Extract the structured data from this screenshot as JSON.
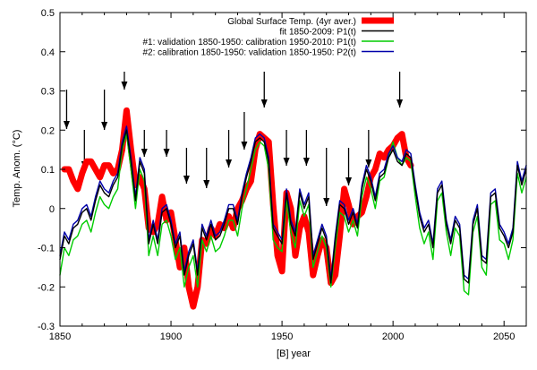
{
  "chart_data": {
    "type": "line",
    "title": "",
    "xlabel": "[B]   year",
    "ylabel": "Temp. Anom. (°C)",
    "xlim": [
      1850,
      2060
    ],
    "ylim": [
      -0.3,
      0.5
    ],
    "xticks": [
      1850,
      1900,
      1950,
      2000,
      2050
    ],
    "yticks": [
      -0.3,
      -0.2,
      -0.1,
      0,
      0.1,
      0.2,
      0.3,
      0.4,
      0.5
    ],
    "grid": false,
    "legend_position": "top-right",
    "series": [
      {
        "name": "Global Surface Temp. (4yr aver.)",
        "color": "#ff0000",
        "x": [
          1852,
          1854,
          1856,
          1858,
          1860,
          1862,
          1864,
          1866,
          1868,
          1870,
          1872,
          1874,
          1876,
          1878,
          1880,
          1882,
          1884,
          1886,
          1888,
          1890,
          1892,
          1894,
          1896,
          1898,
          1900,
          1902,
          1904,
          1906,
          1908,
          1910,
          1912,
          1914,
          1916,
          1918,
          1920,
          1922,
          1924,
          1926,
          1928,
          1930,
          1932,
          1934,
          1936,
          1938,
          1940,
          1942,
          1944,
          1946,
          1948,
          1950,
          1952,
          1954,
          1956,
          1958,
          1960,
          1962,
          1964,
          1966,
          1968,
          1970,
          1972,
          1974,
          1976,
          1978,
          1980,
          1982,
          1984,
          1986,
          1988,
          1990,
          1992,
          1994,
          1996,
          1998,
          2000,
          2002,
          2004,
          2006,
          2008
        ],
        "values": [
          0.1,
          0.1,
          0.07,
          0.05,
          0.09,
          0.12,
          0.12,
          0.1,
          0.08,
          0.11,
          0.11,
          0.09,
          0.1,
          0.15,
          0.25,
          0.15,
          0.06,
          0.08,
          0.05,
          -0.05,
          -0.06,
          -0.04,
          0.03,
          -0.03,
          -0.01,
          -0.08,
          -0.15,
          -0.1,
          -0.2,
          -0.25,
          -0.2,
          -0.08,
          -0.09,
          -0.05,
          -0.07,
          -0.04,
          -0.05,
          -0.02,
          -0.05,
          0.0,
          0.02,
          0.05,
          0.07,
          0.15,
          0.19,
          0.18,
          0.17,
          0.01,
          -0.12,
          -0.16,
          0.04,
          0.0,
          -0.12,
          -0.05,
          -0.02,
          -0.06,
          -0.17,
          -0.12,
          -0.08,
          -0.1,
          -0.19,
          -0.17,
          -0.07,
          0.05,
          0.01,
          -0.04,
          -0.02,
          -0.01,
          0.03,
          0.08,
          0.1,
          0.14,
          0.13,
          0.15,
          0.16,
          0.18,
          0.19,
          0.13,
          0.11
        ]
      },
      {
        "name": "fit 1850-2009: P1(t)",
        "color": "#000000",
        "x": [
          1850,
          1852,
          1854,
          1856,
          1858,
          1860,
          1862,
          1864,
          1866,
          1868,
          1870,
          1872,
          1874,
          1876,
          1878,
          1880,
          1882,
          1884,
          1886,
          1888,
          1890,
          1892,
          1894,
          1896,
          1898,
          1900,
          1902,
          1904,
          1906,
          1908,
          1910,
          1912,
          1914,
          1916,
          1918,
          1920,
          1922,
          1924,
          1926,
          1928,
          1930,
          1932,
          1934,
          1936,
          1938,
          1940,
          1942,
          1944,
          1946,
          1948,
          1950,
          1952,
          1954,
          1956,
          1958,
          1960,
          1962,
          1964,
          1966,
          1968,
          1970,
          1972,
          1974,
          1976,
          1978,
          1980,
          1982,
          1984,
          1986,
          1988,
          1990,
          1992,
          1994,
          1996,
          1998,
          2000,
          2002,
          2004,
          2006,
          2008,
          2010,
          2012,
          2014,
          2016,
          2018,
          2020,
          2022,
          2024,
          2026,
          2028,
          2030,
          2032,
          2034,
          2036,
          2038,
          2040,
          2042,
          2044,
          2046,
          2048,
          2050,
          2052,
          2054,
          2056,
          2058,
          2060
        ],
        "values": [
          -0.13,
          -0.07,
          -0.09,
          -0.05,
          -0.04,
          -0.01,
          0.0,
          -0.03,
          0.02,
          0.06,
          0.04,
          0.03,
          0.06,
          0.08,
          0.16,
          0.2,
          0.12,
          0.02,
          0.12,
          0.09,
          -0.09,
          -0.04,
          -0.09,
          -0.01,
          0.0,
          -0.04,
          -0.1,
          -0.07,
          -0.17,
          -0.12,
          -0.09,
          -0.17,
          -0.05,
          -0.08,
          -0.04,
          -0.08,
          -0.07,
          -0.04,
          0.0,
          0.0,
          -0.04,
          0.03,
          0.08,
          0.12,
          0.17,
          0.18,
          0.17,
          0.12,
          -0.05,
          -0.07,
          -0.09,
          0.04,
          -0.04,
          -0.07,
          0.04,
          0.0,
          0.03,
          -0.13,
          -0.09,
          -0.05,
          -0.08,
          -0.19,
          -0.08,
          0.01,
          0.0,
          -0.04,
          -0.01,
          -0.05,
          0.05,
          0.1,
          0.07,
          0.02,
          0.08,
          0.09,
          0.13,
          0.15,
          0.12,
          0.11,
          0.14,
          0.13,
          0.05,
          -0.02,
          -0.06,
          -0.04,
          -0.1,
          0.04,
          0.06,
          -0.04,
          -0.09,
          -0.03,
          -0.05,
          -0.18,
          -0.19,
          -0.04,
          0.0,
          -0.13,
          -0.14,
          0.03,
          0.04,
          -0.05,
          -0.07,
          -0.1,
          -0.06,
          0.11,
          0.06,
          0.1
        ]
      },
      {
        "name": "#1: validation 1850-1950: calibration 1950-2010: P1(t)",
        "color": "#00cc00",
        "x": [
          1850,
          1852,
          1854,
          1856,
          1858,
          1860,
          1862,
          1864,
          1866,
          1868,
          1870,
          1872,
          1874,
          1876,
          1878,
          1880,
          1882,
          1884,
          1886,
          1888,
          1890,
          1892,
          1894,
          1896,
          1898,
          1900,
          1902,
          1904,
          1906,
          1908,
          1910,
          1912,
          1914,
          1916,
          1918,
          1920,
          1922,
          1924,
          1926,
          1928,
          1930,
          1932,
          1934,
          1936,
          1938,
          1940,
          1942,
          1944,
          1946,
          1948,
          1950,
          1952,
          1954,
          1956,
          1958,
          1960,
          1962,
          1964,
          1966,
          1968,
          1970,
          1972,
          1974,
          1976,
          1978,
          1980,
          1982,
          1984,
          1986,
          1988,
          1990,
          1992,
          1994,
          1996,
          1998,
          2000,
          2002,
          2004,
          2006,
          2008,
          2010,
          2012,
          2014,
          2016,
          2018,
          2020,
          2022,
          2024,
          2026,
          2028,
          2030,
          2032,
          2034,
          2036,
          2038,
          2040,
          2042,
          2044,
          2046,
          2048,
          2050,
          2052,
          2054,
          2056,
          2058,
          2060
        ],
        "values": [
          -0.17,
          -0.1,
          -0.12,
          -0.08,
          -0.07,
          -0.04,
          -0.03,
          -0.06,
          -0.01,
          0.03,
          0.01,
          0.0,
          0.03,
          0.05,
          0.15,
          0.19,
          0.1,
          0.0,
          0.1,
          0.07,
          -0.12,
          -0.07,
          -0.12,
          -0.04,
          -0.03,
          -0.07,
          -0.13,
          -0.1,
          -0.2,
          -0.15,
          -0.12,
          -0.2,
          -0.08,
          -0.11,
          -0.07,
          -0.11,
          -0.1,
          -0.07,
          -0.03,
          -0.03,
          -0.07,
          0.0,
          0.05,
          0.1,
          0.15,
          0.17,
          0.16,
          0.1,
          -0.08,
          -0.1,
          -0.11,
          0.02,
          -0.06,
          -0.1,
          0.02,
          -0.02,
          0.01,
          -0.15,
          -0.11,
          -0.07,
          -0.1,
          -0.2,
          -0.1,
          -0.01,
          -0.02,
          -0.06,
          -0.03,
          -0.07,
          0.03,
          0.08,
          0.05,
          0.0,
          0.07,
          0.08,
          0.13,
          0.17,
          0.13,
          0.11,
          0.13,
          0.12,
          0.03,
          -0.05,
          -0.09,
          -0.06,
          -0.13,
          0.02,
          0.04,
          -0.06,
          -0.12,
          -0.05,
          -0.07,
          -0.21,
          -0.22,
          -0.06,
          -0.02,
          -0.15,
          -0.17,
          0.01,
          0.02,
          -0.08,
          -0.09,
          -0.13,
          -0.08,
          0.09,
          0.04,
          0.08
        ]
      },
      {
        "name": "#2: calibration 1850-1950: validation 1850-1950: P2(t)",
        "color": "#0000aa",
        "x": [
          1850,
          1852,
          1854,
          1856,
          1858,
          1860,
          1862,
          1864,
          1866,
          1868,
          1870,
          1872,
          1874,
          1876,
          1878,
          1880,
          1882,
          1884,
          1886,
          1888,
          1890,
          1892,
          1894,
          1896,
          1898,
          1900,
          1902,
          1904,
          1906,
          1908,
          1910,
          1912,
          1914,
          1916,
          1918,
          1920,
          1922,
          1924,
          1926,
          1928,
          1930,
          1932,
          1934,
          1936,
          1938,
          1940,
          1942,
          1944,
          1946,
          1948,
          1950,
          1952,
          1954,
          1956,
          1958,
          1960,
          1962,
          1964,
          1966,
          1968,
          1970,
          1972,
          1974,
          1976,
          1978,
          1980,
          1982,
          1984,
          1986,
          1988,
          1990,
          1992,
          1994,
          1996,
          1998,
          2000,
          2002,
          2004,
          2006,
          2008,
          2010,
          2012,
          2014,
          2016,
          2018,
          2020,
          2022,
          2024,
          2026,
          2028,
          2030,
          2032,
          2034,
          2036,
          2038,
          2040,
          2042,
          2044,
          2046,
          2048,
          2050,
          2052,
          2054,
          2056,
          2058,
          2060
        ],
        "values": [
          -0.12,
          -0.06,
          -0.08,
          -0.04,
          -0.03,
          0.0,
          0.01,
          -0.02,
          0.03,
          0.07,
          0.05,
          0.04,
          0.07,
          0.09,
          0.17,
          0.21,
          0.13,
          0.03,
          0.13,
          0.1,
          -0.08,
          -0.03,
          -0.08,
          0.0,
          0.01,
          -0.03,
          -0.09,
          -0.06,
          -0.16,
          -0.11,
          -0.08,
          -0.16,
          -0.04,
          -0.07,
          -0.03,
          -0.07,
          -0.06,
          -0.03,
          0.01,
          0.01,
          -0.03,
          0.04,
          0.09,
          0.13,
          0.18,
          0.19,
          0.18,
          0.13,
          -0.04,
          -0.06,
          -0.08,
          0.05,
          -0.03,
          -0.06,
          0.05,
          0.01,
          0.04,
          -0.12,
          -0.08,
          -0.04,
          -0.07,
          -0.18,
          -0.07,
          0.02,
          0.01,
          -0.03,
          0.0,
          -0.04,
          0.06,
          0.11,
          0.08,
          0.03,
          0.09,
          0.1,
          0.14,
          0.16,
          0.13,
          0.12,
          0.15,
          0.14,
          0.06,
          -0.01,
          -0.05,
          -0.03,
          -0.09,
          0.05,
          0.07,
          -0.03,
          -0.08,
          -0.02,
          -0.04,
          -0.17,
          -0.18,
          -0.03,
          0.01,
          -0.12,
          -0.13,
          0.04,
          0.05,
          -0.04,
          -0.06,
          -0.09,
          -0.05,
          0.12,
          0.07,
          0.11
        ]
      }
    ],
    "annotations": {
      "arrows_at_years": [
        1853,
        1861,
        1870,
        1879,
        1888,
        1898,
        1907,
        1916,
        1926,
        1933,
        1942,
        1952,
        1961,
        1970,
        1980,
        1989,
        2003
      ]
    }
  }
}
